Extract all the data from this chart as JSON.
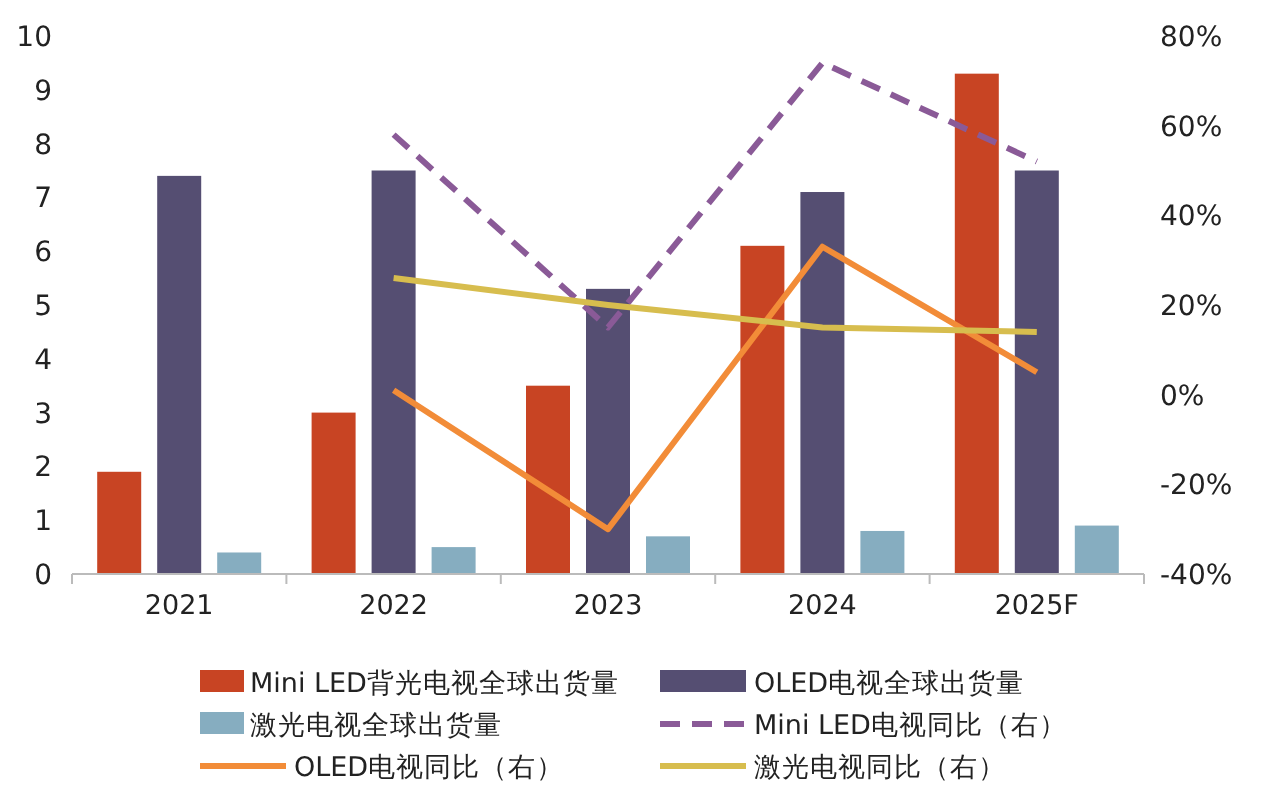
{
  "chart_data": {
    "type": "bar",
    "categories": [
      "2021",
      "2022",
      "2023",
      "2024",
      "2025F"
    ],
    "ylim": [
      0,
      10
    ],
    "yticks": [
      0,
      1,
      2,
      3,
      4,
      5,
      6,
      7,
      8,
      9,
      10
    ],
    "y2lim": [
      -40,
      80
    ],
    "y2ticks": [
      {
        "value": -40,
        "label": "-40%"
      },
      {
        "value": -20,
        "label": "-20%"
      },
      {
        "value": 0,
        "label": "0%"
      },
      {
        "value": 20,
        "label": "20%"
      },
      {
        "value": 40,
        "label": "40%"
      },
      {
        "value": 60,
        "label": "60%"
      },
      {
        "value": 80,
        "label": "80%"
      }
    ],
    "legend": "bottom",
    "grid": false,
    "series": [
      {
        "name": "Mini LED背光电视全球出货量",
        "color": "#c84423",
        "values": [
          1.9,
          3.0,
          3.5,
          6.1,
          9.3
        ]
      },
      {
        "name": "OLED电视全球出货量",
        "color": "#554e72",
        "values": [
          7.4,
          7.5,
          5.3,
          7.1,
          7.5
        ]
      },
      {
        "name": "激光电视全球出货量",
        "color": "#86adc0",
        "values": [
          0.4,
          0.5,
          0.7,
          0.8,
          0.9
        ]
      },
      {
        "name": "Mini LED电视同比（右）",
        "type": "line",
        "axis": "y2",
        "line_style": "dashed",
        "color": "#8a5a97",
        "values": [
          null,
          58,
          15,
          74,
          52
        ]
      },
      {
        "name": "OLED电视同比（右）",
        "type": "line",
        "axis": "y2",
        "line_style": "solid",
        "color": "#f28c38",
        "values": [
          null,
          1,
          -30,
          33,
          5
        ]
      },
      {
        "name": "激光电视同比（右）",
        "type": "line",
        "axis": "y2",
        "line_style": "solid",
        "color": "#d7bd4e",
        "values": [
          null,
          26,
          20,
          15,
          14
        ]
      }
    ]
  }
}
